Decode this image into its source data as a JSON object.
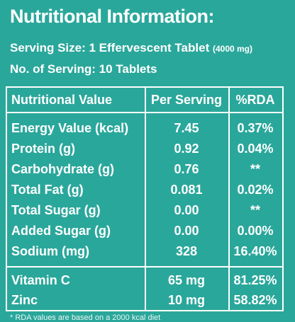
{
  "title": "Nutritional Information:",
  "serving_size": {
    "label": "Serving Size: 1 Effervescent Tablet",
    "unit_detail": "(4000 mg)"
  },
  "servings_count": "No. of Serving: 10 Tablets",
  "table": {
    "headers": [
      "Nutritional Value",
      "Per Serving",
      "%RDA"
    ],
    "rows": [
      [
        "Energy Value (kcal)",
        "7.45",
        "0.37%"
      ],
      [
        "Protein (g)",
        "0.92",
        "0.04%"
      ],
      [
        "Carbohydrate (g)",
        "0.76",
        "**"
      ],
      [
        "Total Fat (g)",
        "0.081",
        "0.02%"
      ],
      [
        "Total Sugar (g)",
        "0.00",
        "**"
      ],
      [
        "Added Sugar (g)",
        "0.00",
        "0.00%"
      ],
      [
        "Sodium (mg)",
        "328",
        "16.40%"
      ]
    ],
    "rows2": [
      [
        "Vitamin C",
        "65 mg",
        "81.25%"
      ],
      [
        "Zinc",
        "10 mg",
        "58.82%"
      ]
    ]
  },
  "footnote": "* RDA values are based on a 2000 kcal diet",
  "colors": {
    "background": "#2aa79b",
    "text": "#ffffff"
  }
}
